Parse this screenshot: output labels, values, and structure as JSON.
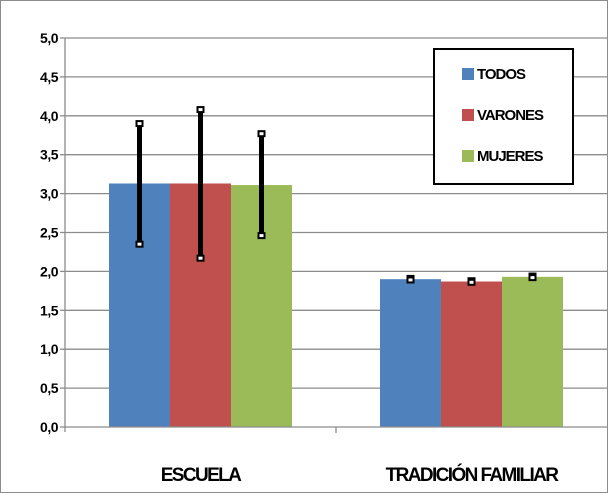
{
  "chart_data": {
    "type": "bar",
    "title": "",
    "xlabel": "",
    "ylabel": "",
    "categories": [
      "ESCUELA",
      "TRADICIÓN FAMILIAR"
    ],
    "ylim": [
      0,
      5
    ],
    "yticks": [
      "0,0",
      "0,5",
      "1,0",
      "1,5",
      "2,0",
      "2,5",
      "3,0",
      "3,5",
      "4,0",
      "4,5",
      "5,0"
    ],
    "grid": true,
    "legend_position": "top-right",
    "series": [
      {
        "name": "TODOS",
        "color": "#4f81bd",
        "values": [
          3.13,
          1.9
        ],
        "error_low": [
          2.35,
          1.89
        ],
        "error_high": [
          3.9,
          1.91
        ]
      },
      {
        "name": "VARONES",
        "color": "#c0504d",
        "values": [
          3.13,
          1.87
        ],
        "error_low": [
          2.17,
          1.86
        ],
        "error_high": [
          4.08,
          1.88
        ]
      },
      {
        "name": "MUJERES",
        "color": "#9bbb59",
        "values": [
          3.11,
          1.93
        ],
        "error_low": [
          2.46,
          1.92
        ],
        "error_high": [
          3.77,
          1.94
        ]
      }
    ]
  }
}
